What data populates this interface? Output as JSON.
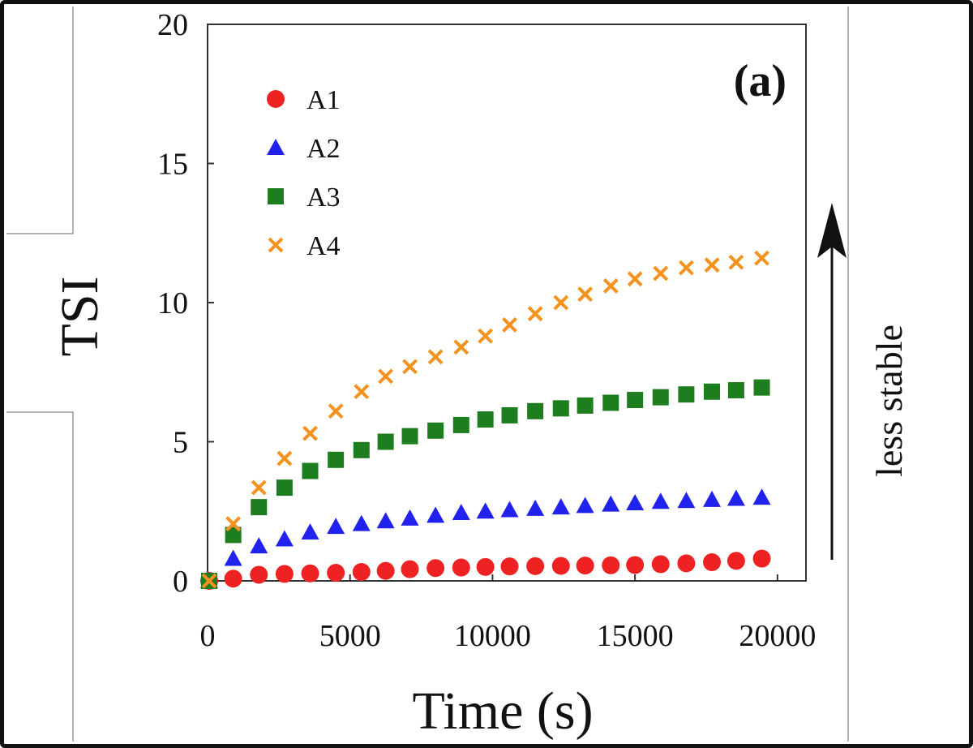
{
  "chart_data": {
    "type": "scatter",
    "panel_label": "(a)",
    "xlabel": "Time (s)",
    "ylabel": "TSI",
    "annotation": "less stable",
    "xlim": [
      0,
      21000
    ],
    "ylim": [
      0,
      20
    ],
    "x_ticks": [
      "0",
      "5000",
      "10000",
      "15000",
      "20000"
    ],
    "x_tick_values": [
      0,
      5000,
      10000,
      15000,
      20000
    ],
    "y_ticks": [
      "0",
      "5",
      "10",
      "15",
      "20"
    ],
    "y_tick_values": [
      0,
      5,
      10,
      15,
      20
    ],
    "legend_position": "top-left",
    "x": [
      0,
      900,
      1800,
      2700,
      3600,
      4500,
      5400,
      6250,
      7100,
      8000,
      8900,
      9750,
      10600,
      11500,
      12400,
      13250,
      14150,
      15000,
      15900,
      16800,
      17700,
      18550,
      19450
    ],
    "series": [
      {
        "name": "A1",
        "marker": "circle",
        "color": "#ee2222",
        "values": [
          0,
          0.08,
          0.22,
          0.25,
          0.27,
          0.29,
          0.32,
          0.36,
          0.42,
          0.46,
          0.48,
          0.5,
          0.52,
          0.53,
          0.54,
          0.55,
          0.56,
          0.57,
          0.6,
          0.63,
          0.67,
          0.72,
          0.8
        ]
      },
      {
        "name": "A2",
        "marker": "triangle",
        "color": "#2222ee",
        "values": [
          0,
          0.8,
          1.25,
          1.5,
          1.75,
          1.95,
          2.05,
          2.15,
          2.25,
          2.35,
          2.45,
          2.5,
          2.55,
          2.6,
          2.65,
          2.7,
          2.75,
          2.8,
          2.85,
          2.88,
          2.92,
          2.96,
          3.0
        ]
      },
      {
        "name": "A3",
        "marker": "square",
        "color": "#1e7d1e",
        "values": [
          0,
          1.65,
          2.65,
          3.35,
          3.95,
          4.35,
          4.7,
          5.0,
          5.2,
          5.4,
          5.6,
          5.8,
          5.95,
          6.1,
          6.2,
          6.3,
          6.4,
          6.5,
          6.6,
          6.7,
          6.8,
          6.85,
          6.95
        ]
      },
      {
        "name": "A4",
        "marker": "x",
        "color": "#f5921e",
        "values": [
          0,
          2.05,
          3.35,
          4.4,
          5.3,
          6.1,
          6.8,
          7.35,
          7.7,
          8.05,
          8.4,
          8.8,
          9.2,
          9.6,
          10.0,
          10.3,
          10.6,
          10.85,
          11.05,
          11.25,
          11.35,
          11.45,
          11.6
        ]
      }
    ]
  }
}
